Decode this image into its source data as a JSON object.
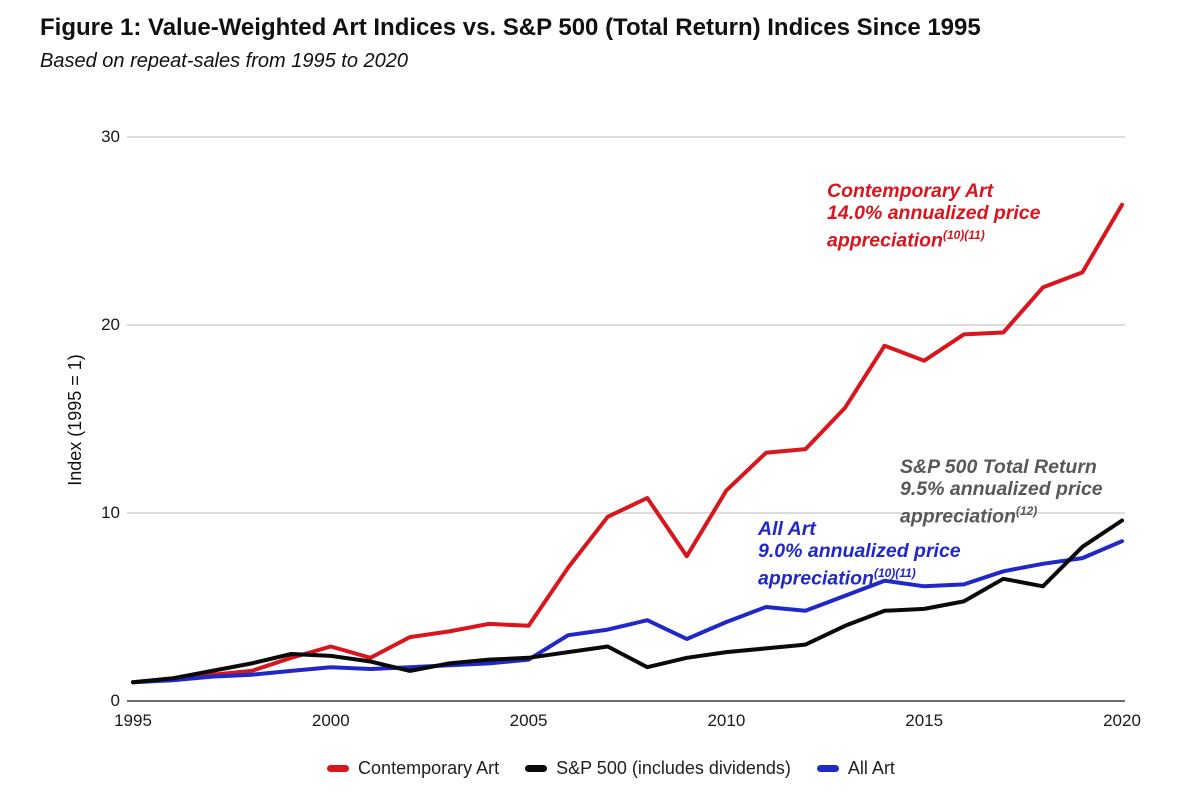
{
  "header": {
    "title": "Figure 1: Value-Weighted Art Indices vs. S&P 500 (Total Return) Indices Since 1995",
    "subtitle": "Based on repeat-sales from 1995 to 2020"
  },
  "colors": {
    "contemporary_art": "#d8161d",
    "sp500_line": "#0a0a0a",
    "all_art": "#2028c8",
    "sp500_annotation": "#58585a",
    "gridline": "#dcdcdc",
    "axis": "#6e6e6e",
    "tick_text": "#1a1a1a"
  },
  "chart_data": {
    "type": "line",
    "title": "Figure 1: Value-Weighted Art Indices vs. S&P 500 (Total Return) Indices Since 1995",
    "subtitle": "Based on repeat-sales from 1995 to 2020",
    "x": [
      1995,
      1996,
      1997,
      1998,
      1999,
      2000,
      2001,
      2002,
      2003,
      2004,
      2005,
      2006,
      2007,
      2008,
      2009,
      2010,
      2011,
      2012,
      2013,
      2014,
      2015,
      2016,
      2017,
      2018,
      2019,
      2020
    ],
    "series": [
      {
        "name": "Contemporary Art",
        "color": "#d8161d",
        "values": [
          1.0,
          1.2,
          1.4,
          1.6,
          2.3,
          2.9,
          2.3,
          3.4,
          3.7,
          4.1,
          4.0,
          7.1,
          9.8,
          10.8,
          7.7,
          11.2,
          13.2,
          13.4,
          15.6,
          18.9,
          18.1,
          19.5,
          19.6,
          22.0,
          22.8,
          26.4
        ]
      },
      {
        "name": "S&P 500 (includes dividends)",
        "color": "#0a0a0a",
        "values": [
          1.0,
          1.2,
          1.6,
          2.0,
          2.5,
          2.4,
          2.1,
          1.6,
          2.0,
          2.2,
          2.3,
          2.6,
          2.9,
          1.8,
          2.3,
          2.6,
          2.8,
          3.0,
          4.0,
          4.8,
          4.9,
          5.3,
          6.5,
          6.1,
          8.2,
          9.6
        ]
      },
      {
        "name": "All Art",
        "color": "#2028c8",
        "values": [
          1.0,
          1.1,
          1.3,
          1.4,
          1.6,
          1.8,
          1.7,
          1.8,
          1.9,
          2.0,
          2.2,
          3.5,
          3.8,
          4.3,
          3.3,
          4.2,
          5.0,
          4.8,
          5.6,
          6.4,
          6.1,
          6.2,
          6.9,
          7.3,
          7.6,
          8.5
        ]
      }
    ],
    "xlabel": "",
    "ylabel": "Index (1995 = 1)",
    "yticks": [
      0,
      10,
      20,
      30
    ],
    "xticks": [
      1995,
      2000,
      2005,
      2010,
      2015,
      2020
    ],
    "ylim": [
      0,
      30
    ],
    "xlim": [
      1995,
      2020
    ],
    "grid": "horizontal",
    "legend_position": "bottom"
  },
  "annotations": {
    "contemporary": {
      "line1": "Contemporary Art",
      "line2": "14.0% annualized price",
      "line3": "appreciation",
      "sup": "(10)(11)"
    },
    "sp500": {
      "line1": "S&P 500 Total Return",
      "line2": "9.5% annualized price",
      "line3": "appreciation",
      "sup": "(12)"
    },
    "all_art": {
      "line1": "All Art",
      "line2": "9.0% annualized price",
      "line3": "appreciation",
      "sup": "(10)(11)"
    }
  },
  "legend": {
    "items": [
      {
        "label": "Contemporary Art"
      },
      {
        "label": "S&P 500 (includes dividends)"
      },
      {
        "label": "All Art"
      }
    ]
  }
}
